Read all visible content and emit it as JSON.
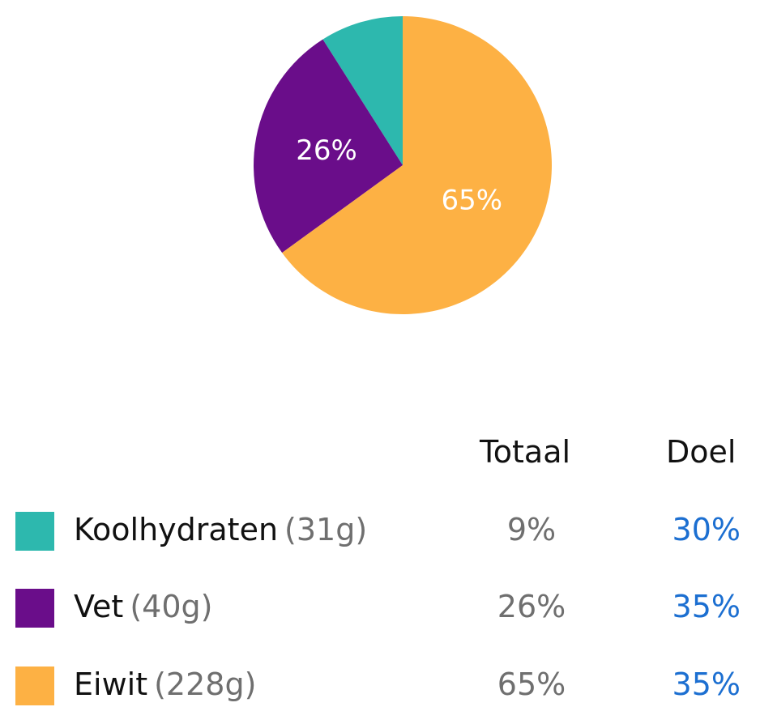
{
  "chart_data": {
    "type": "pie",
    "slices": [
      {
        "label": "Koolhydraten",
        "percent": 9,
        "color": "#2db8ae"
      },
      {
        "label": "Vet",
        "percent": 26,
        "color": "#6a0d8a"
      },
      {
        "label": "Eiwit",
        "percent": 65,
        "color": "#fdb144"
      }
    ],
    "slice_labels": [
      "",
      "26%",
      "65%"
    ]
  },
  "table": {
    "header_total": "Totaal",
    "header_goal": "Doel",
    "rows": [
      {
        "name": "Koolhydraten",
        "grams": "(31g)",
        "total": "9%",
        "goal": "30%",
        "color": "#2db8ae"
      },
      {
        "name": "Vet",
        "grams": "(40g)",
        "total": "26%",
        "goal": "35%",
        "color": "#6a0d8a"
      },
      {
        "name": "Eiwit",
        "grams": "(228g)",
        "total": "65%",
        "goal": "35%",
        "color": "#fdb144"
      }
    ]
  }
}
